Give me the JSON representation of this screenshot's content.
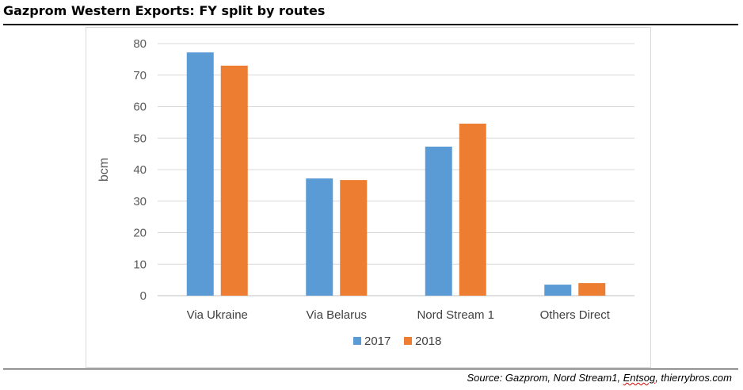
{
  "header": {
    "title": "Gazprom Western Exports: FY split by routes"
  },
  "footer": {
    "source_prefix": "Source: Gazprom, Nord Stream1, ",
    "source_flagged": "Entsog",
    "source_suffix": ", thierrybros.com"
  },
  "chart_data": {
    "type": "bar",
    "categories": [
      "Via Ukraine",
      "Via Belarus",
      "Nord Stream 1",
      "Others Direct"
    ],
    "series": [
      {
        "name": "2017",
        "values": [
          77.2,
          37.2,
          47.3,
          3.5
        ],
        "color": "#5B9BD5"
      },
      {
        "name": "2018",
        "values": [
          73.0,
          36.7,
          54.6,
          4.0
        ],
        "color": "#ED7D31"
      }
    ],
    "title": "",
    "xlabel": "",
    "ylabel": "bcm",
    "ylim": [
      0,
      80
    ],
    "yticks": [
      0,
      10,
      20,
      30,
      40,
      50,
      60,
      70,
      80
    ],
    "grid": true,
    "legend": "bottom-center"
  }
}
